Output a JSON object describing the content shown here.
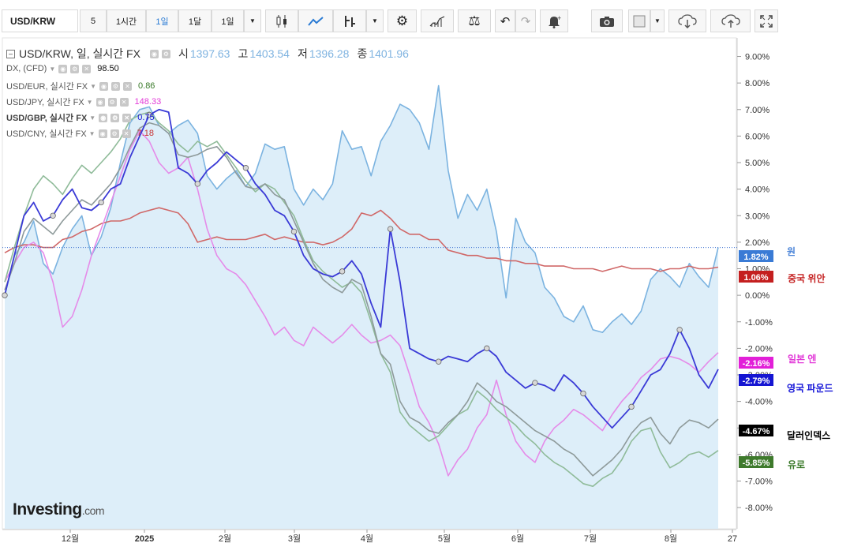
{
  "toolbar": {
    "symbol": "USD/KRW",
    "interval_5": "5",
    "interval_1h": "1시간",
    "interval_1d_active": "1일",
    "interval_1m": "1달",
    "interval_dropdown": "1일",
    "icons": [
      "candlestick-icon",
      "line-chart-icon",
      "indicator-icon",
      "settings-icon",
      "study-icon",
      "compare-icon",
      "undo-icon",
      "redo-icon",
      "alert-icon",
      "camera-icon",
      "color-icon",
      "download-icon",
      "upload-icon",
      "fullscreen-icon"
    ]
  },
  "legend": {
    "main": {
      "name": "USD/KRW, 일, 실시간 FX",
      "open_label": "시",
      "open": "1397.63",
      "high_label": "고",
      "high": "1403.54",
      "low_label": "저",
      "low": "1396.28",
      "close_label": "종",
      "close": "1401.96"
    },
    "items": [
      {
        "name": "DX, (CFD)",
        "value": "98.50",
        "color": "#111111"
      },
      {
        "name": "USD/EUR, 실시간 FX",
        "value": "0.86",
        "color": "#3a7a2a"
      },
      {
        "name": "USD/JPY, 실시간 FX",
        "value": "148.33",
        "color": "#e23ad8"
      },
      {
        "name": "USD/GBP, 실시간 FX",
        "value": "0.75",
        "color": "#1717d8"
      },
      {
        "name": "USD/CNY, 실시간 FX",
        "value": "7.18",
        "color": "#c83030"
      }
    ]
  },
  "right_labels": [
    {
      "name": "원",
      "value": "1.82%",
      "color": "#4f87d9"
    },
    {
      "name": "중국 위안",
      "value": "1.06%",
      "color": "#c41f1f"
    },
    {
      "name": "일본 엔",
      "value": "-2.16%",
      "color": "#e23ad8"
    },
    {
      "name": "영국 파운드",
      "value": "-2.79%",
      "color": "#1717d8"
    },
    {
      "name": "달러인덱스",
      "value": "-4.67%",
      "color": "#000000"
    },
    {
      "name": "유로",
      "value": "-5.85%",
      "color": "#3a7a2a"
    }
  ],
  "logo": {
    "main": "Investing",
    "suffix": ".com"
  },
  "chart_data": {
    "type": "line",
    "x_ticks": [
      "12월",
      "2025",
      "2월",
      "3월",
      "4월",
      "5월",
      "6월",
      "7월",
      "8월",
      "27"
    ],
    "y_ticks": [
      "9.00%",
      "8.00%",
      "7.00%",
      "6.00%",
      "5.00%",
      "4.00%",
      "3.00%",
      "2.00%",
      "1.00%",
      "0.00%",
      "-1.00%",
      "-2.00%",
      "-3.00%",
      "-4.00%",
      "-5.00%",
      "-6.00%",
      "-7.00%",
      "-8.00%"
    ],
    "ylim": [
      -8.8,
      9.7
    ],
    "y_unit": "%",
    "series": [
      {
        "name": "원",
        "color": "#7bb3e0",
        "fill": "#ddeef9",
        "values": [
          0.0,
          1.5,
          2.0,
          2.8,
          1.2,
          0.8,
          1.8,
          2.5,
          3.0,
          1.5,
          2.2,
          3.3,
          5.0,
          6.5,
          7.0,
          7.1,
          6.4,
          6.1,
          6.4,
          6.6,
          6.1,
          4.5,
          4.0,
          4.4,
          4.7,
          4.1,
          4.6,
          5.7,
          5.5,
          5.6,
          4.0,
          3.4,
          4.0,
          3.6,
          4.2,
          6.2,
          5.5,
          5.6,
          4.5,
          5.8,
          6.4,
          7.2,
          7.0,
          6.5,
          5.5,
          7.9,
          4.7,
          2.9,
          3.8,
          3.2,
          4.0,
          2.4,
          -0.1,
          2.9,
          2.0,
          1.6,
          0.3,
          -0.1,
          -0.8,
          -1.0,
          -0.4,
          -1.3,
          -1.4,
          -1.0,
          -0.7,
          -1.1,
          -0.6,
          0.6,
          1.0,
          0.7,
          0.3,
          1.2,
          0.7,
          0.3,
          1.8
        ]
      },
      {
        "name": "중국 위안",
        "color": "#d06868",
        "values": [
          1.6,
          1.8,
          1.9,
          1.9,
          1.8,
          1.8,
          2.1,
          2.2,
          2.4,
          2.5,
          2.7,
          2.8,
          2.8,
          2.9,
          3.1,
          3.2,
          3.3,
          3.2,
          3.1,
          2.7,
          2.0,
          2.1,
          2.2,
          2.1,
          2.1,
          2.1,
          2.2,
          2.3,
          2.1,
          2.2,
          2.1,
          2.0,
          2.0,
          1.9,
          2.0,
          2.2,
          2.5,
          3.1,
          3.0,
          3.2,
          2.9,
          2.5,
          2.3,
          2.3,
          2.1,
          2.1,
          1.7,
          1.6,
          1.5,
          1.5,
          1.4,
          1.4,
          1.3,
          1.3,
          1.2,
          1.2,
          1.1,
          1.1,
          1.1,
          1.0,
          1.0,
          1.0,
          0.9,
          1.0,
          1.1,
          1.0,
          1.0,
          1.0,
          0.9,
          1.0,
          1.0,
          1.1,
          1.0,
          1.0,
          1.06
        ]
      },
      {
        "name": "일본 엔",
        "color": "#e58be9",
        "values": [
          0.5,
          1.2,
          1.8,
          2.0,
          1.6,
          0.5,
          -1.2,
          -0.8,
          0.2,
          1.5,
          2.5,
          3.5,
          4.5,
          5.5,
          6.2,
          5.8,
          5.0,
          4.6,
          4.8,
          5.2,
          4.0,
          2.5,
          1.5,
          1.0,
          0.8,
          0.4,
          -0.2,
          -0.8,
          -1.5,
          -1.2,
          -1.7,
          -1.9,
          -1.2,
          -1.5,
          -1.8,
          -1.5,
          -1.1,
          -1.5,
          -1.8,
          -1.7,
          -1.5,
          -1.9,
          -3.0,
          -4.2,
          -4.8,
          -5.6,
          -6.8,
          -6.2,
          -5.8,
          -5.0,
          -4.5,
          -3.2,
          -4.5,
          -5.5,
          -6.0,
          -6.3,
          -5.5,
          -5.0,
          -4.7,
          -4.3,
          -4.5,
          -4.8,
          -5.1,
          -4.5,
          -4.0,
          -3.6,
          -3.1,
          -2.8,
          -2.4,
          -2.3,
          -2.4,
          -2.6,
          -2.9,
          -2.5,
          -2.16
        ]
      },
      {
        "name": "영국 파운드",
        "color": "#3a3ad6",
        "values": [
          0.0,
          1.5,
          3.0,
          3.5,
          2.8,
          3.0,
          3.6,
          4.0,
          3.3,
          3.2,
          3.5,
          4.0,
          4.2,
          5.2,
          6.0,
          6.8,
          7.0,
          6.9,
          4.8,
          4.6,
          4.2,
          4.7,
          5.0,
          5.4,
          5.1,
          4.8,
          4.2,
          3.8,
          3.2,
          3.0,
          2.4,
          1.5,
          1.0,
          0.8,
          0.7,
          0.9,
          1.3,
          0.8,
          -0.3,
          -1.2,
          2.5,
          0.5,
          -2.0,
          -2.2,
          -2.4,
          -2.5,
          -2.3,
          -2.4,
          -2.5,
          -2.2,
          -2.0,
          -2.3,
          -2.9,
          -3.2,
          -3.5,
          -3.3,
          -3.4,
          -3.6,
          -3.0,
          -3.3,
          -3.7,
          -4.2,
          -4.6,
          -5.0,
          -4.6,
          -4.2,
          -3.6,
          -3.0,
          -2.8,
          -2.2,
          -1.3,
          -2.0,
          -3.0,
          -3.5,
          -2.79
        ]
      },
      {
        "name": "달러인덱스",
        "color": "#8e9a9a",
        "values": [
          0.2,
          1.2,
          2.4,
          2.9,
          2.6,
          2.3,
          2.8,
          3.2,
          3.6,
          3.4,
          3.8,
          4.2,
          4.8,
          5.6,
          6.3,
          6.5,
          6.4,
          6.1,
          5.3,
          5.2,
          5.3,
          5.5,
          5.6,
          5.2,
          4.6,
          4.1,
          4.0,
          4.2,
          3.8,
          3.6,
          2.8,
          2.0,
          1.2,
          0.6,
          0.3,
          0.1,
          0.6,
          0.4,
          -0.8,
          -2.2,
          -2.6,
          -4.0,
          -4.6,
          -4.8,
          -5.1,
          -5.2,
          -4.8,
          -4.5,
          -4.0,
          -3.3,
          -3.6,
          -4.0,
          -4.2,
          -4.5,
          -4.8,
          -5.1,
          -5.3,
          -5.5,
          -5.8,
          -6.0,
          -6.4,
          -6.8,
          -6.5,
          -6.2,
          -5.8,
          -5.2,
          -4.8,
          -4.6,
          -5.2,
          -5.6,
          -5.0,
          -4.7,
          -4.8,
          -5.0,
          -4.67
        ]
      },
      {
        "name": "유로",
        "color": "#8fbb99",
        "values": [
          0.5,
          1.8,
          3.0,
          4.0,
          4.5,
          4.2,
          3.8,
          4.4,
          4.9,
          4.6,
          5.0,
          5.4,
          5.9,
          6.6,
          6.8,
          6.9,
          6.5,
          6.2,
          5.7,
          5.4,
          5.8,
          5.6,
          5.8,
          5.3,
          4.8,
          4.3,
          3.9,
          4.2,
          4.0,
          3.5,
          3.0,
          2.1,
          1.3,
          0.9,
          0.6,
          0.3,
          0.5,
          0.1,
          -1.0,
          -2.2,
          -2.9,
          -4.4,
          -4.9,
          -5.2,
          -5.5,
          -5.3,
          -4.9,
          -4.5,
          -4.3,
          -3.6,
          -3.9,
          -4.3,
          -4.6,
          -4.9,
          -5.3,
          -5.6,
          -6.0,
          -6.3,
          -6.5,
          -6.8,
          -7.1,
          -7.2,
          -6.9,
          -6.7,
          -6.2,
          -5.5,
          -5.1,
          -5.0,
          -5.9,
          -6.5,
          -6.3,
          -6.0,
          -5.9,
          -6.1,
          -5.85
        ]
      }
    ]
  }
}
